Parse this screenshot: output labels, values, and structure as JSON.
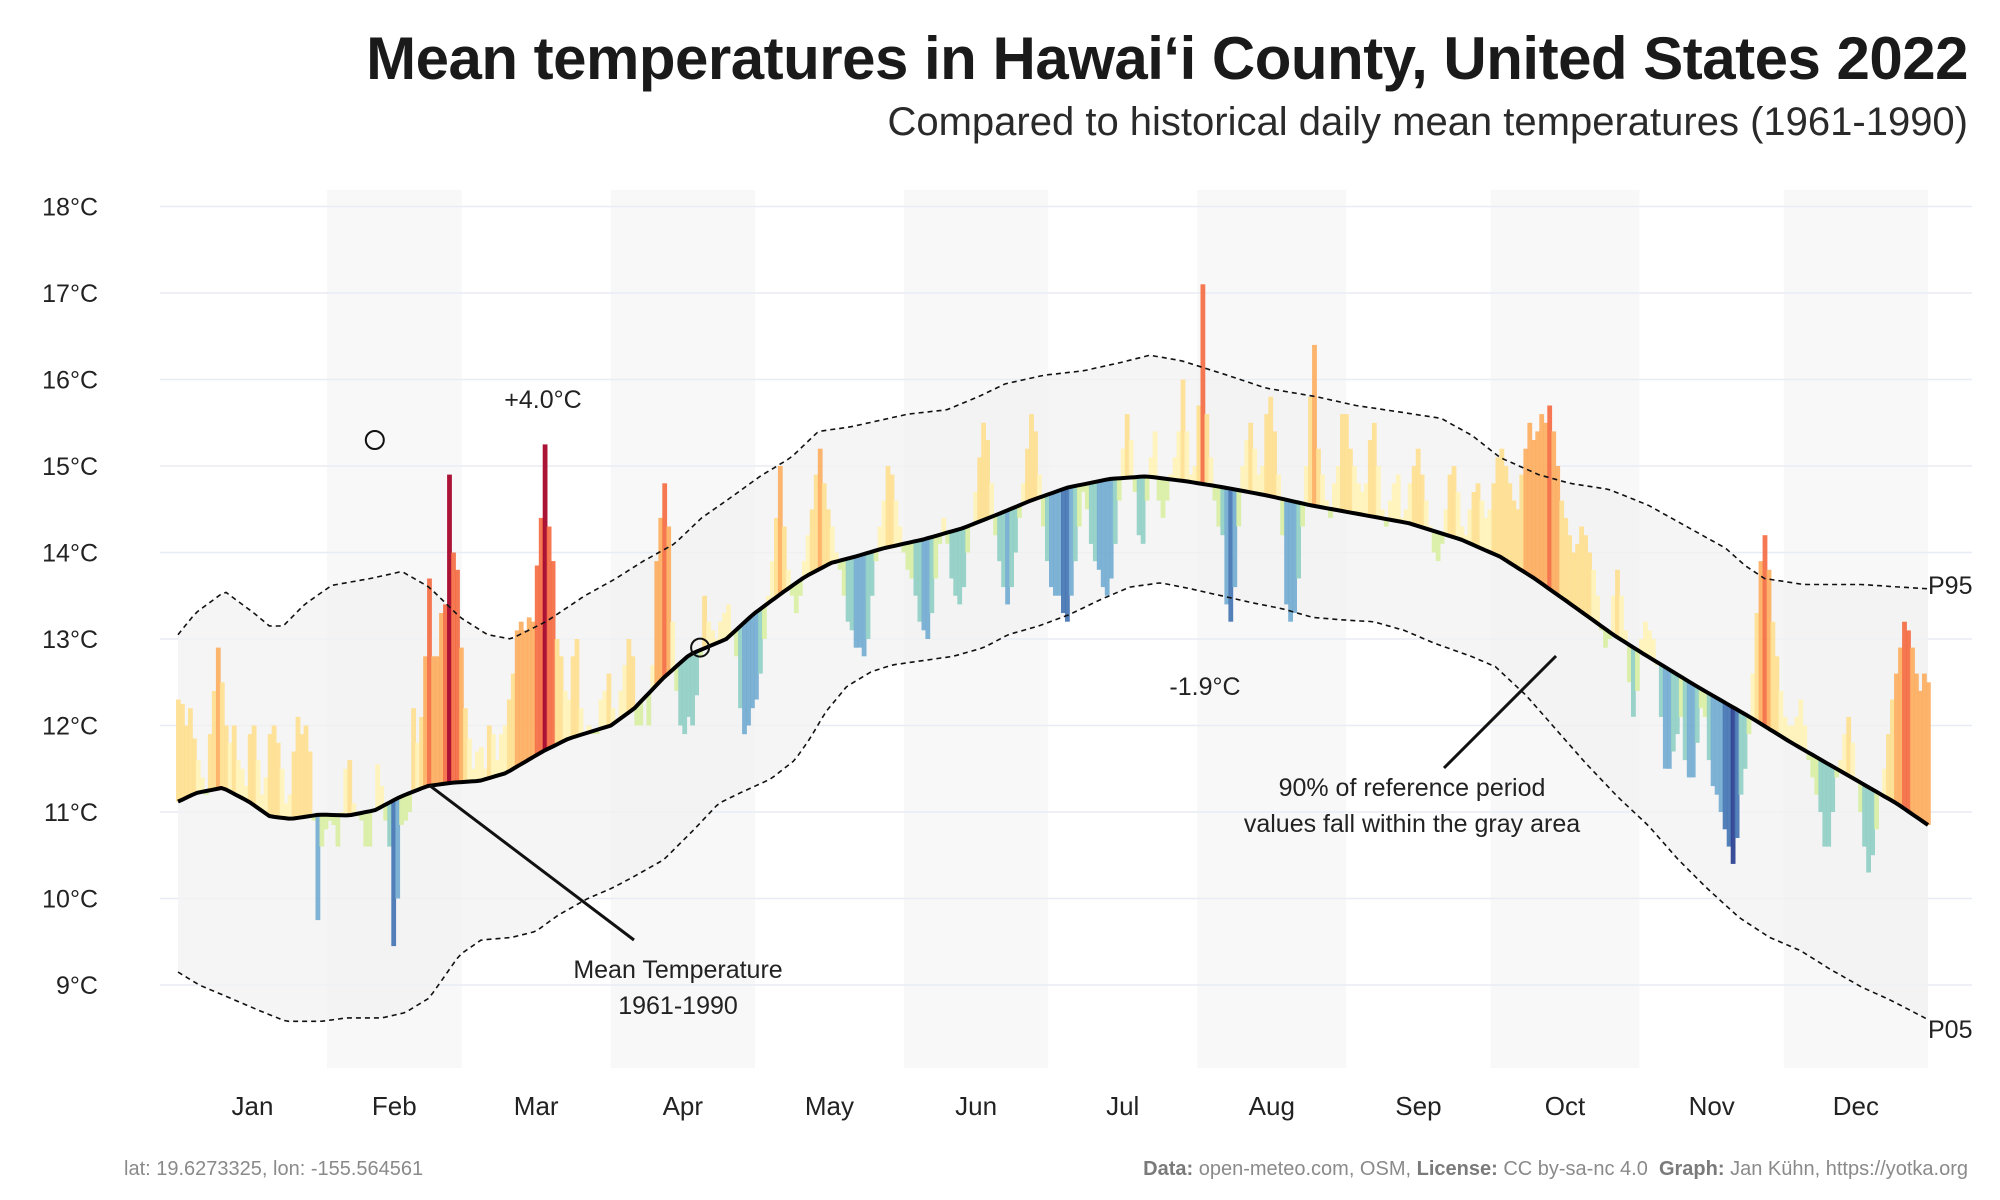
{
  "header": {
    "title": "Mean temperatures in Hawaiʻi County, United States 2022",
    "subtitle": "Compared to historical daily mean temperatures (1961-1990)"
  },
  "footer": {
    "coords": "lat: 19.6273325, lon: -155.564561",
    "data_label": "Data:",
    "data_value": "open-meteo.com, OSM,",
    "license_label": "License:",
    "license_value": "CC by-sa-nc 4.0",
    "graph_label": "Graph:",
    "graph_value": "Jan Kühn, https://yotka.org"
  },
  "chart_data": {
    "type": "area",
    "y_unit": "°C",
    "ylim": [
      8,
      18.2
    ],
    "y_ticks": [
      {
        "value": 9,
        "label": "9°C"
      },
      {
        "value": 10,
        "label": "10°C"
      },
      {
        "value": 11,
        "label": "11°C"
      },
      {
        "value": 12,
        "label": "12°C"
      },
      {
        "value": 13,
        "label": "13°C"
      },
      {
        "value": 14,
        "label": "14°C"
      },
      {
        "value": 15,
        "label": "15°C"
      },
      {
        "value": 16,
        "label": "16°C"
      },
      {
        "value": 17,
        "label": "17°C"
      },
      {
        "value": 18,
        "label": "18°C"
      }
    ],
    "months": [
      "Jan",
      "Feb",
      "Mar",
      "Apr",
      "May",
      "Jun",
      "Jul",
      "Aug",
      "Sep",
      "Oct",
      "Nov",
      "Dec"
    ],
    "grid": true,
    "reference_mean": {
      "name": "Mean Temperature 1961-1990",
      "points": [
        [
          1,
          11.12
        ],
        [
          8,
          11.22
        ],
        [
          18,
          11.28
        ],
        [
          28,
          11.12
        ],
        [
          36,
          10.95
        ],
        [
          44,
          10.92
        ],
        [
          55,
          10.97
        ],
        [
          66,
          10.96
        ],
        [
          76,
          11.02
        ],
        [
          86,
          11.18
        ],
        [
          96,
          11.3
        ],
        [
          106,
          11.34
        ],
        [
          116,
          11.36
        ],
        [
          126,
          11.45
        ],
        [
          140,
          11.7
        ],
        [
          150,
          11.85
        ],
        [
          166,
          12.0
        ],
        [
          175,
          12.2
        ],
        [
          186,
          12.55
        ],
        [
          196,
          12.82
        ],
        [
          210,
          13.0
        ],
        [
          220,
          13.28
        ],
        [
          232,
          13.55
        ],
        [
          240,
          13.72
        ],
        [
          250,
          13.88
        ],
        [
          260,
          13.96
        ],
        [
          270,
          14.05
        ],
        [
          285,
          14.15
        ],
        [
          300,
          14.28
        ],
        [
          315,
          14.46
        ],
        [
          326,
          14.6
        ],
        [
          340,
          14.75
        ],
        [
          356,
          14.85
        ],
        [
          370,
          14.88
        ],
        [
          386,
          14.82
        ],
        [
          400,
          14.75
        ],
        [
          416,
          14.66
        ],
        [
          432,
          14.55
        ],
        [
          450,
          14.45
        ],
        [
          470,
          14.34
        ],
        [
          490,
          14.15
        ],
        [
          505,
          13.95
        ],
        [
          518,
          13.7
        ],
        [
          532,
          13.4
        ],
        [
          548,
          13.05
        ],
        [
          560,
          12.82
        ],
        [
          580,
          12.45
        ],
        [
          600,
          12.1
        ],
        [
          616,
          11.8
        ],
        [
          636,
          11.45
        ],
        [
          656,
          11.1
        ],
        [
          668,
          10.85
        ]
      ]
    },
    "p95": {
      "label": "P95",
      "points": [
        [
          1,
          13.05
        ],
        [
          10,
          13.3
        ],
        [
          25,
          13.55
        ],
        [
          40,
          13.3
        ],
        [
          48,
          13.15
        ],
        [
          55,
          13.15
        ],
        [
          66,
          13.4
        ],
        [
          80,
          13.62
        ],
        [
          100,
          13.7
        ],
        [
          116,
          13.78
        ],
        [
          130,
          13.6
        ],
        [
          146,
          13.25
        ],
        [
          160,
          13.05
        ],
        [
          172,
          13.0
        ],
        [
          190,
          13.2
        ],
        [
          210,
          13.5
        ],
        [
          226,
          13.7
        ],
        [
          240,
          13.9
        ],
        [
          256,
          14.1
        ],
        [
          270,
          14.4
        ],
        [
          284,
          14.62
        ],
        [
          300,
          14.88
        ],
        [
          316,
          15.1
        ],
        [
          330,
          15.4
        ],
        [
          346,
          15.45
        ],
        [
          360,
          15.52
        ],
        [
          376,
          15.6
        ],
        [
          396,
          15.65
        ],
        [
          412,
          15.8
        ],
        [
          426,
          15.95
        ],
        [
          446,
          16.05
        ],
        [
          466,
          16.1
        ],
        [
          486,
          16.2
        ],
        [
          500,
          16.28
        ],
        [
          516,
          16.22
        ],
        [
          540,
          16.05
        ],
        [
          560,
          15.9
        ],
        [
          586,
          15.8
        ],
        [
          606,
          15.7
        ],
        [
          630,
          15.62
        ],
        [
          650,
          15.55
        ],
        [
          666,
          15.35
        ],
        [
          680,
          15.1
        ],
        [
          700,
          14.9
        ],
        [
          716,
          14.8
        ],
        [
          736,
          14.73
        ],
        [
          756,
          14.55
        ],
        [
          776,
          14.3
        ],
        [
          796,
          14.05
        ],
        [
          806,
          13.85
        ],
        [
          816,
          13.7
        ],
        [
          836,
          13.63
        ],
        [
          866,
          13.63
        ],
        [
          886,
          13.6
        ],
        [
          900,
          13.58
        ]
      ]
    },
    "p05": {
      "label": "P05",
      "points": [
        [
          1,
          9.15
        ],
        [
          15,
          9.0
        ],
        [
          35,
          8.85
        ],
        [
          55,
          8.7
        ],
        [
          72,
          8.58
        ],
        [
          95,
          8.58
        ],
        [
          112,
          8.62
        ],
        [
          135,
          8.62
        ],
        [
          150,
          8.68
        ],
        [
          166,
          8.85
        ],
        [
          176,
          9.1
        ],
        [
          186,
          9.35
        ],
        [
          200,
          9.52
        ],
        [
          220,
          9.55
        ],
        [
          236,
          9.62
        ],
        [
          250,
          9.8
        ],
        [
          270,
          10.0
        ],
        [
          286,
          10.12
        ],
        [
          300,
          10.25
        ],
        [
          320,
          10.45
        ],
        [
          340,
          10.8
        ],
        [
          356,
          11.1
        ],
        [
          370,
          11.22
        ],
        [
          390,
          11.38
        ],
        [
          406,
          11.6
        ],
        [
          416,
          11.85
        ],
        [
          426,
          12.15
        ],
        [
          440,
          12.45
        ],
        [
          456,
          12.62
        ],
        [
          470,
          12.7
        ],
        [
          490,
          12.75
        ],
        [
          510,
          12.8
        ],
        [
          530,
          12.9
        ],
        [
          546,
          13.05
        ],
        [
          566,
          13.15
        ],
        [
          586,
          13.28
        ],
        [
          606,
          13.45
        ],
        [
          626,
          13.6
        ],
        [
          646,
          13.65
        ],
        [
          666,
          13.58
        ],
        [
          686,
          13.5
        ],
        [
          706,
          13.42
        ],
        [
          726,
          13.35
        ],
        [
          746,
          13.25
        ],
        [
          766,
          13.22
        ],
        [
          786,
          13.2
        ],
        [
          806,
          13.1
        ],
        [
          826,
          12.95
        ],
        [
          850,
          12.8
        ],
        [
          866,
          12.68
        ],
        [
          886,
          12.35
        ],
        [
          906,
          11.95
        ],
        [
          926,
          11.55
        ],
        [
          946,
          11.18
        ],
        [
          966,
          10.85
        ],
        [
          986,
          10.45
        ],
        [
          1006,
          10.1
        ],
        [
          1026,
          9.78
        ],
        [
          1046,
          9.55
        ],
        [
          1066,
          9.4
        ],
        [
          1086,
          9.18
        ],
        [
          1106,
          8.98
        ],
        [
          1126,
          8.82
        ],
        [
          1150,
          8.6
        ]
      ]
    },
    "band_label": "90% of reference period values fall within the gray area",
    "mean_label_line1": "Mean Temperature",
    "mean_label_line2": "1961-1990",
    "max_anomaly": {
      "day": 76,
      "temperature": 15.3,
      "label": "+4.0°C"
    },
    "min_anomaly": {
      "day": 200,
      "temperature": 12.9,
      "label": "-1.9°C"
    },
    "daily_2022": {
      "name": "Daily mean temperature 2022",
      "day_start": 1,
      "values": [
        12.3,
        12.25,
        12.0,
        12.2,
        11.85,
        11.6,
        11.4,
        11.2,
        11.9,
        12.4,
        12.9,
        12.5,
        12.0,
        11.8,
        12.0,
        11.6,
        11.5,
        11.3,
        11.9,
        12.0,
        11.6,
        11.2,
        11.4,
        11.9,
        12.0,
        11.8,
        11.5,
        11.1,
        11.2,
        11.7,
        12.1,
        11.9,
        12.0,
        11.7,
        10.9,
        9.75,
        10.6,
        10.8,
        10.9,
        10.85,
        10.6,
        11.0,
        11.5,
        11.6,
        11.1,
        10.95,
        10.9,
        10.6,
        10.6,
        11.0,
        11.55,
        11.3,
        10.9,
        10.6,
        9.45,
        10.0,
        10.85,
        10.9,
        11.0,
        12.2,
        11.8,
        12.1,
        12.8,
        13.7,
        12.8,
        12.8,
        13.3,
        13.4,
        14.9,
        14.0,
        13.8,
        12.9,
        12.2,
        11.85,
        11.5,
        11.7,
        11.75,
        11.5,
        12.0,
        11.9,
        11.6,
        11.9,
        12.0,
        12.3,
        12.6,
        13.1,
        13.2,
        13.1,
        13.25,
        13.2,
        13.85,
        14.4,
        15.25,
        14.3,
        13.9,
        13.0,
        12.8,
        12.4,
        12.3,
        12.8,
        13.0,
        12.2,
        11.9,
        12.0,
        11.9,
        11.9,
        12.3,
        12.4,
        12.6,
        12.2,
        12.05,
        12.4,
        12.7,
        13.0,
        12.8,
        12.0,
        12.0,
        12.3,
        12.0,
        12.7,
        13.9,
        14.4,
        14.8,
        14.3,
        13.2,
        12.4,
        12.0,
        11.9,
        12.1,
        12.0,
        12.35,
        12.8,
        13.5,
        13.2,
        13.1,
        13.0,
        13.2,
        13.3,
        13.4,
        13.1,
        12.8,
        12.2,
        11.9,
        12.0,
        12.2,
        12.3,
        12.6,
        13.0,
        13.5,
        13.9,
        14.4,
        15.0,
        14.3,
        13.8,
        13.5,
        13.3,
        13.5,
        13.9,
        14.2,
        14.5,
        14.9,
        15.2,
        14.8,
        14.5,
        14.3,
        14.0,
        13.8,
        13.5,
        13.2,
        13.1,
        12.9,
        12.9,
        12.8,
        13.0,
        13.5,
        13.9,
        14.3,
        14.6,
        15.0,
        14.9,
        14.6,
        14.3,
        14.0,
        13.8,
        13.7,
        13.5,
        13.2,
        13.1,
        13.0,
        13.3,
        13.7,
        14.1,
        14.4,
        14.1,
        13.7,
        13.5,
        13.4,
        13.6,
        14.0,
        14.3,
        14.7,
        15.1,
        15.5,
        15.3,
        14.8,
        14.2,
        13.9,
        13.6,
        13.4,
        13.6,
        14.0,
        14.4,
        14.8,
        15.2,
        15.6,
        15.4,
        14.9,
        14.3,
        13.9,
        13.6,
        13.5,
        13.5,
        13.3,
        13.2,
        13.5,
        13.9,
        14.3,
        14.7,
        14.5,
        14.1,
        13.9,
        13.8,
        13.6,
        13.5,
        13.7,
        14.1,
        14.6,
        15.2,
        15.6,
        15.3,
        14.7,
        14.2,
        14.1,
        14.6,
        15.1,
        15.4,
        14.6,
        14.4,
        14.6,
        14.9,
        15.1,
        15.4,
        16.0,
        15.4,
        14.9,
        15.0,
        15.7,
        17.1,
        15.6,
        15.1,
        14.6,
        14.3,
        14.2,
        13.4,
        13.2,
        13.6,
        14.3,
        15.0,
        15.3,
        15.5,
        15.2,
        14.9,
        15.0,
        15.6,
        15.8,
        15.4,
        14.9,
        14.2,
        13.4,
        13.2,
        13.3,
        13.7,
        14.3,
        15.0,
        15.8,
        16.4,
        15.2,
        14.9,
        14.6,
        14.4,
        14.8,
        15.0,
        15.6,
        15.6,
        15.2,
        15.0,
        14.8,
        14.7,
        14.8,
        15.3,
        15.5,
        15.0,
        14.5,
        14.3,
        14.6,
        14.8,
        14.9,
        14.4,
        14.5,
        14.8,
        15.0,
        15.2,
        14.9,
        14.6,
        14.3,
        14.0,
        13.9,
        14.1,
        14.5,
        14.9,
        15.0,
        14.7,
        14.3,
        14.2,
        14.5,
        14.7,
        14.8,
        14.6,
        14.4,
        14.5,
        14.8,
        15.1,
        15.2,
        15.0,
        14.8,
        14.6,
        14.5,
        14.9,
        15.2,
        15.5,
        15.3,
        15.4,
        15.6,
        15.5,
        15.7,
        15.4,
        15.0,
        14.6,
        14.4,
        14.2,
        14.0,
        14.1,
        14.3,
        14.2,
        14.0,
        13.8,
        13.5,
        13.1,
        12.9,
        13.0,
        13.5,
        13.8,
        13.5,
        13.1,
        12.5,
        12.1,
        12.4,
        13.0,
        13.2,
        13.1,
        13.0,
        12.7,
        12.1,
        11.5,
        11.5,
        11.7,
        11.9,
        12.1,
        11.6,
        11.4,
        11.4,
        11.8,
        12.2,
        12.1,
        11.6,
        11.3,
        11.2,
        11.0,
        10.8,
        10.6,
        10.4,
        10.7,
        11.2,
        11.5,
        11.9,
        12.6,
        13.3,
        13.9,
        14.2,
        13.8,
        13.2,
        12.8,
        12.4,
        12.1,
        12.0,
        12.0,
        12.1,
        12.3,
        12.0,
        11.6,
        11.4,
        11.2,
        11.0,
        10.6,
        10.6,
        11.0,
        11.4,
        11.6,
        11.9,
        12.1,
        11.8,
        11.4,
        11.0,
        10.6,
        10.3,
        10.5,
        10.8,
        11.2,
        11.5,
        11.9,
        12.3,
        12.6,
        12.9,
        13.2,
        13.1,
        12.9,
        12.6,
        12.4,
        12.6,
        12.5
      ]
    }
  }
}
